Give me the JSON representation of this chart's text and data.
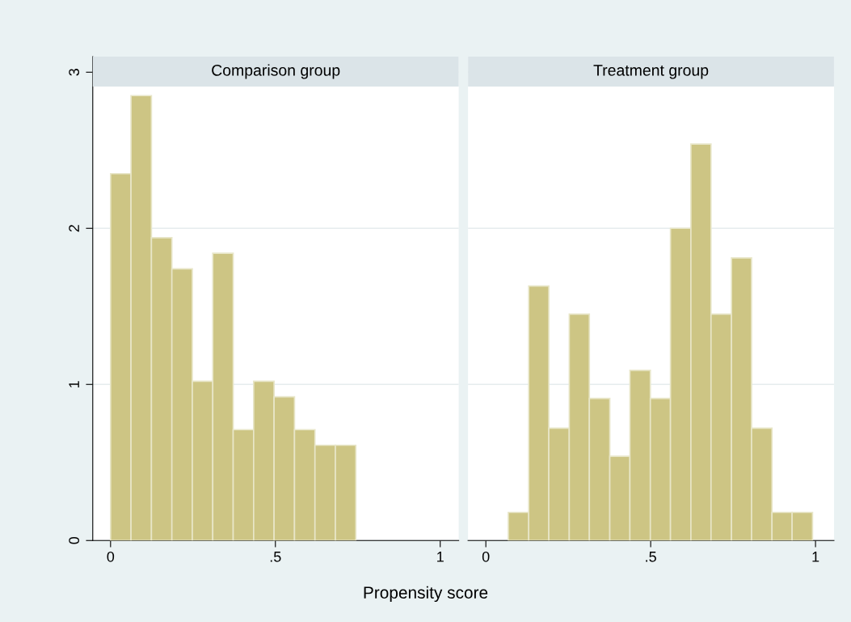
{
  "chart_data": [
    {
      "type": "histogram",
      "title": "Comparison group",
      "xlabel": "Propensity score",
      "bins": [
        0.0,
        0.062,
        0.124,
        0.186,
        0.248,
        0.31,
        0.372,
        0.434,
        0.496,
        0.558,
        0.62,
        0.682,
        0.744
      ],
      "values": [
        2.35,
        2.85,
        1.94,
        1.74,
        1.02,
        1.84,
        0.71,
        1.02,
        0.92,
        0.71,
        0.61,
        0.61
      ],
      "color": "#cdc584",
      "xlim": [
        -0.054,
        1.056
      ],
      "ylim": [
        0,
        3.1
      ],
      "xticks": [
        0,
        {
          "value": 0.5,
          "label": ".5"
        },
        1
      ],
      "yticks": [
        0,
        1,
        2,
        3
      ],
      "grid": "y"
    },
    {
      "type": "histogram",
      "title": "Treatment group",
      "bins": [
        0.068,
        0.13,
        0.191,
        0.253,
        0.314,
        0.376,
        0.437,
        0.499,
        0.56,
        0.622,
        0.683,
        0.745,
        0.806,
        0.868,
        0.929,
        0.991
      ],
      "values": [
        0.18,
        1.63,
        0.72,
        1.45,
        0.91,
        0.54,
        1.09,
        0.91,
        2.0,
        2.54,
        1.45,
        1.81,
        0.72,
        0.18,
        0.18
      ],
      "color": "#cdc584",
      "xlim": [
        -0.054,
        1.056
      ],
      "ylim": [
        0,
        3.1
      ],
      "xticks": [
        0,
        {
          "value": 0.5,
          "label": ".5"
        },
        1
      ],
      "yticks": [
        0,
        1,
        2,
        3
      ],
      "grid": "y",
      "tick_labels": "x"
    }
  ]
}
